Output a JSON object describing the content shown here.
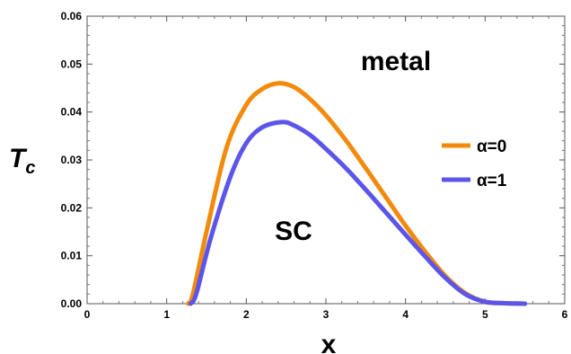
{
  "chart_data": {
    "type": "line",
    "xlabel": "x",
    "ylabel": "T",
    "ylabel_sub": "c",
    "xlim": [
      0,
      6
    ],
    "ylim": [
      0,
      0.06
    ],
    "xticks": [
      "0",
      "1",
      "2",
      "3",
      "4",
      "5",
      "6"
    ],
    "yticks": [
      "0.00",
      "0.01",
      "0.02",
      "0.03",
      "0.04",
      "0.05",
      "0.06"
    ],
    "grid": false,
    "legend_position": "right",
    "annotations": [
      "metal",
      "SC"
    ],
    "series": [
      {
        "name": "α=0",
        "color": "#f28a0c",
        "x": [
          1.27,
          1.33,
          1.5,
          1.75,
          2.0,
          2.2,
          2.4,
          2.6,
          2.8,
          3.0,
          3.25,
          3.5,
          3.75,
          4.0,
          4.25,
          4.5,
          4.75,
          5.0,
          5.25,
          5.5
        ],
        "y": [
          0.0,
          0.002,
          0.015,
          0.0325,
          0.0415,
          0.0448,
          0.046,
          0.0452,
          0.0427,
          0.0393,
          0.0341,
          0.0283,
          0.0223,
          0.0163,
          0.0108,
          0.0058,
          0.0022,
          0.0004,
          0.0001,
          0.0
        ]
      },
      {
        "name": "α=1",
        "color": "#5b55ea",
        "x": [
          1.3,
          1.37,
          1.55,
          1.8,
          2.0,
          2.2,
          2.45,
          2.6,
          2.8,
          3.0,
          3.25,
          3.5,
          3.75,
          4.0,
          4.25,
          4.5,
          4.75,
          5.0,
          5.25,
          5.5
        ],
        "y": [
          0.0,
          0.002,
          0.0135,
          0.0265,
          0.0335,
          0.0368,
          0.0379,
          0.0372,
          0.0352,
          0.0323,
          0.0283,
          0.0238,
          0.0191,
          0.0144,
          0.0098,
          0.0054,
          0.002,
          0.0004,
          0.0001,
          0.0
        ]
      }
    ]
  }
}
